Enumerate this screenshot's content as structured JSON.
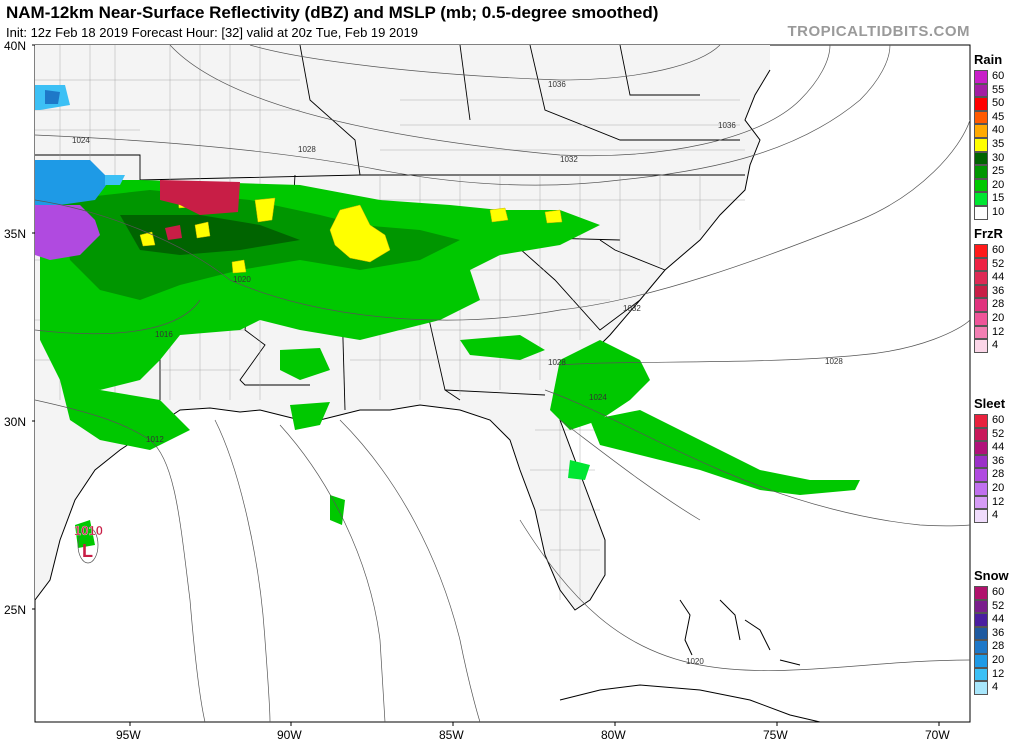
{
  "header": {
    "title": "NAM-12km Near-Surface Reflectivity (dBZ) and MSLP (mb; 0.5-degree smoothed)",
    "subtitle": "Init: 12z Feb 18 2019   Forecast Hour: [32]   valid at 20z Tue, Feb 19 2019",
    "brand": "TROPICALTIDBITS.COM"
  },
  "axes": {
    "lat_labels": [
      "40N",
      "35N",
      "30N",
      "25N"
    ],
    "lon_labels": [
      "95W",
      "90W",
      "85W",
      "80W",
      "75W",
      "70W"
    ]
  },
  "isobars": [
    "1036",
    "1032",
    "1028",
    "1024",
    "1020",
    "1016",
    "1012",
    "1032",
    "1028",
    "1024",
    "1020"
  ],
  "low_center": {
    "label": "L",
    "pressure": "1010"
  },
  "legend": [
    {
      "name": "Rain",
      "levels": [
        "60",
        "55",
        "50",
        "45",
        "40",
        "35",
        "30",
        "25",
        "20",
        "15",
        "10"
      ],
      "colors": [
        "#c81fc8",
        "#a31fa3",
        "#ff0000",
        "#ff5a00",
        "#ffaa00",
        "#ffff00",
        "#006400",
        "#009600",
        "#00c800",
        "#00e632",
        "#ffffff"
      ]
    },
    {
      "name": "FrzR",
      "levels": [
        "60",
        "52",
        "44",
        "36",
        "28",
        "20",
        "12",
        "4"
      ],
      "colors": [
        "#ff1a1a",
        "#ee2244",
        "#dd2a55",
        "#c81e46",
        "#e0337e",
        "#ee5599",
        "#f27fb3",
        "#fbd6e8"
      ]
    },
    {
      "name": "Sleet",
      "levels": [
        "60",
        "52",
        "44",
        "36",
        "28",
        "20",
        "12",
        "4"
      ],
      "colors": [
        "#e8213d",
        "#c8185a",
        "#b0127a",
        "#9b30c8",
        "#b04ae0",
        "#c070ee",
        "#d69cf6",
        "#f0dcfc"
      ]
    },
    {
      "name": "Snow",
      "levels": [
        "60",
        "52",
        "44",
        "36",
        "28",
        "20",
        "12",
        "4"
      ],
      "colors": [
        "#b0126c",
        "#7a1e8c",
        "#4a1ea0",
        "#1e5aa0",
        "#1e78c8",
        "#1e9ae6",
        "#3cc0f5",
        "#a8e6fb"
      ]
    }
  ]
}
